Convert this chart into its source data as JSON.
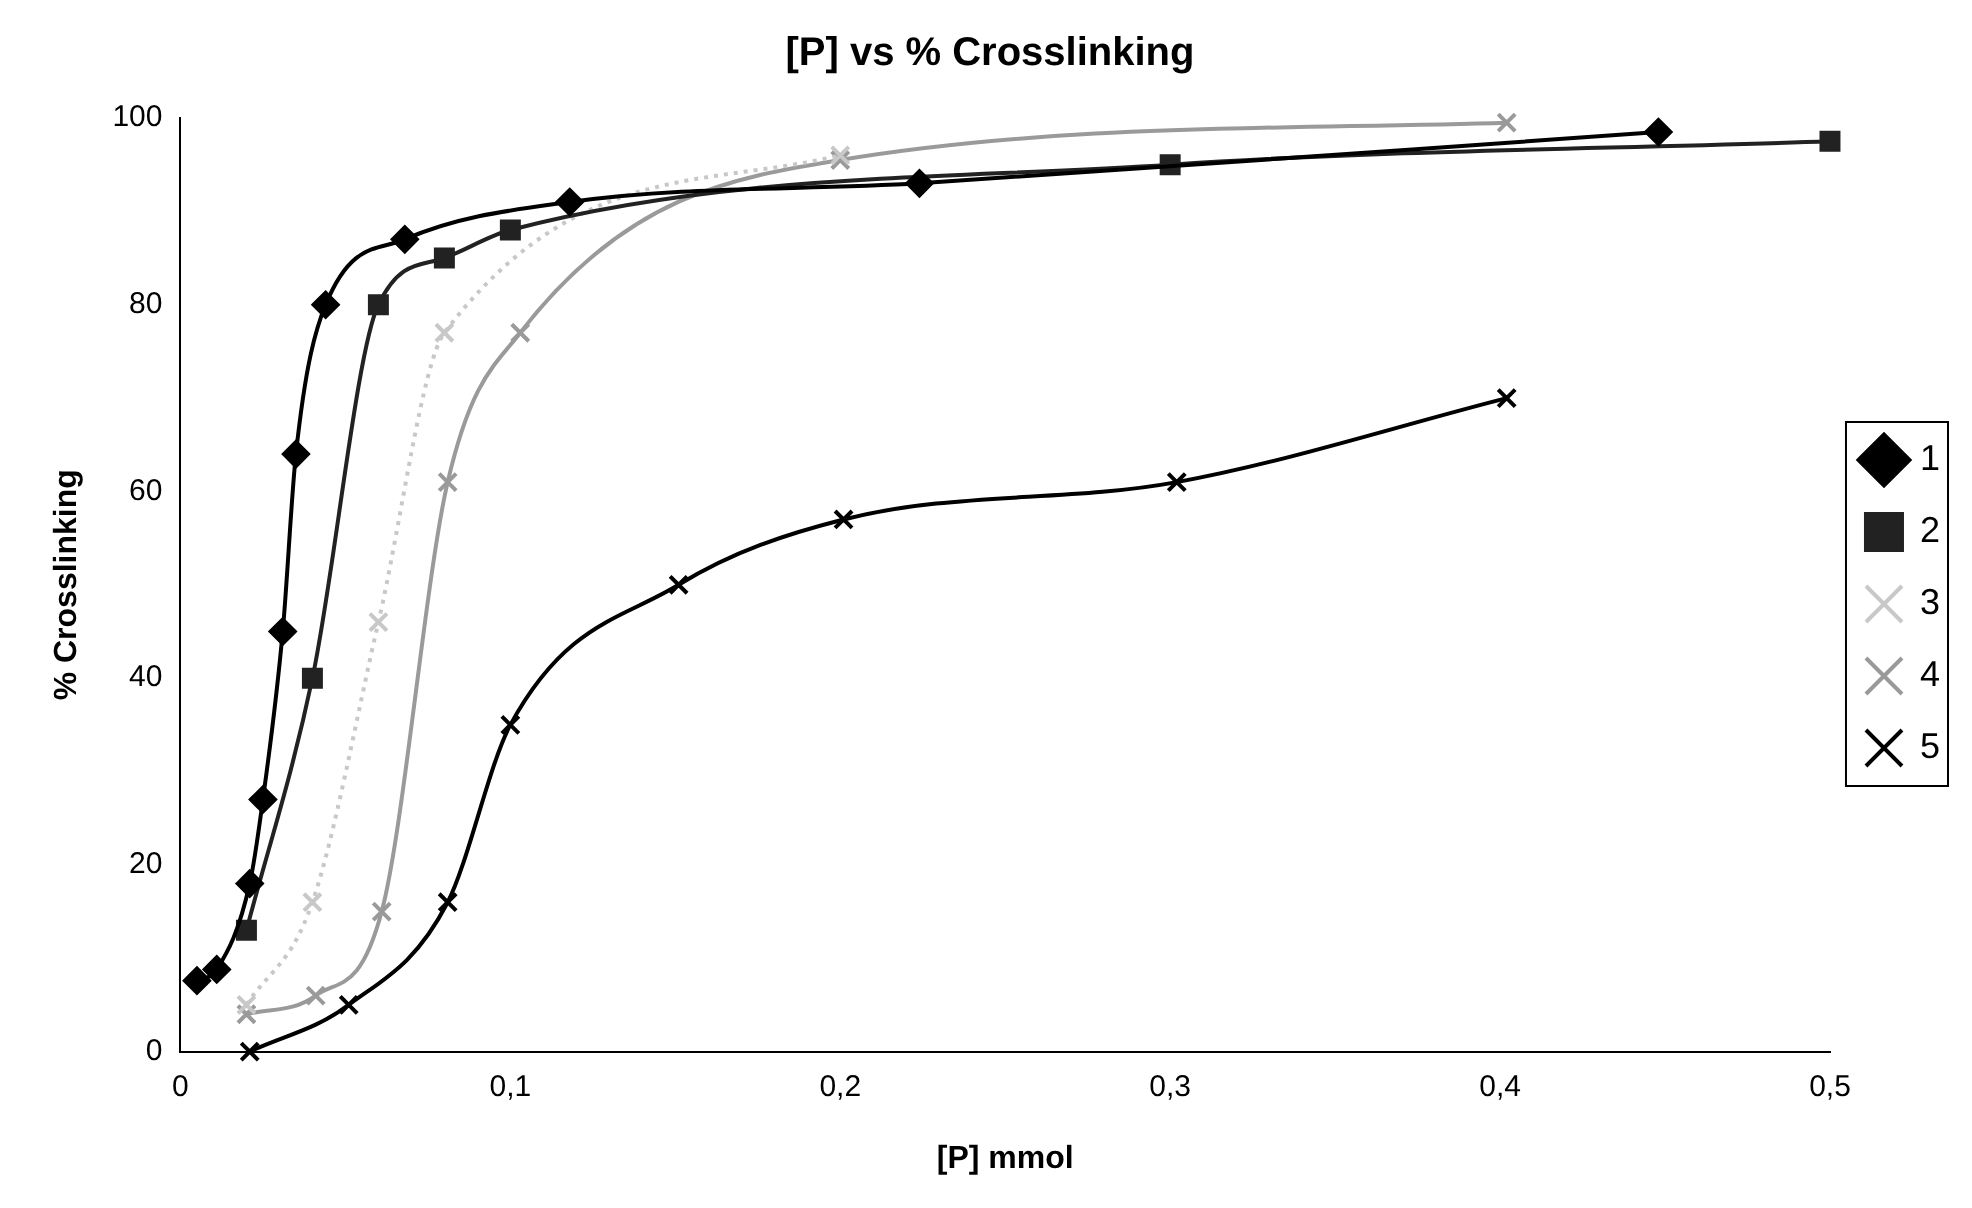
{
  "chart_data": {
    "type": "line",
    "title": "[P] vs % Crosslinking",
    "xlabel": "[P] mmol",
    "ylabel": "% Crosslinking",
    "xlim": [
      0,
      0.5
    ],
    "xticks": [
      0,
      {
        "value": 0.1,
        "label": "0,1"
      },
      {
        "value": 0.2,
        "label": "0,2"
      },
      {
        "value": 0.3,
        "label": "0,3"
      },
      {
        "value": 0.4,
        "label": "0,4"
      },
      {
        "value": 0.5,
        "label": "0,5"
      }
    ],
    "ylim": [
      0,
      100
    ],
    "yticks": [
      0,
      20,
      40,
      60,
      80,
      100
    ],
    "grid": false,
    "legend": "right",
    "series": [
      {
        "name": "1",
        "color": "#000000",
        "marker": "diamond",
        "line_style": "solid",
        "x": [
          0.005,
          0.011,
          0.021,
          0.025,
          0.031,
          0.035,
          0.044,
          0.068,
          0.118,
          0.224,
          0.448
        ],
        "values": [
          7.6,
          8.8,
          18,
          27,
          45,
          64,
          80,
          87,
          91,
          93,
          98.5
        ]
      },
      {
        "name": "2",
        "color": "#222222",
        "marker": "square",
        "line_style": "solid",
        "x": [
          0.02,
          0.04,
          0.06,
          0.08,
          0.1,
          0.3,
          0.5
        ],
        "values": [
          13,
          40,
          80,
          85,
          88,
          95,
          97.5
        ]
      },
      {
        "name": "3",
        "color": "#c8c8c8",
        "marker": "cross",
        "line_style": "dotted",
        "x": [
          0.02,
          0.04,
          0.06,
          0.08,
          0.2
        ],
        "values": [
          5,
          16,
          46,
          77,
          96
        ]
      },
      {
        "name": "4",
        "color": "#9a9a9a",
        "marker": "cross",
        "line_style": "solid",
        "x": [
          0.02,
          0.041,
          0.061,
          0.081,
          0.103,
          0.2,
          0.402
        ],
        "values": [
          4,
          6,
          15,
          61,
          77,
          95.5,
          99.5
        ]
      },
      {
        "name": "5",
        "color": "#000000",
        "marker": "cross",
        "line_style": "solid",
        "x": [
          0.021,
          0.051,
          0.081,
          0.1,
          0.151,
          0.201,
          0.302,
          0.402
        ],
        "values": [
          0,
          5,
          16,
          35,
          50,
          57,
          61,
          70
        ]
      }
    ]
  }
}
